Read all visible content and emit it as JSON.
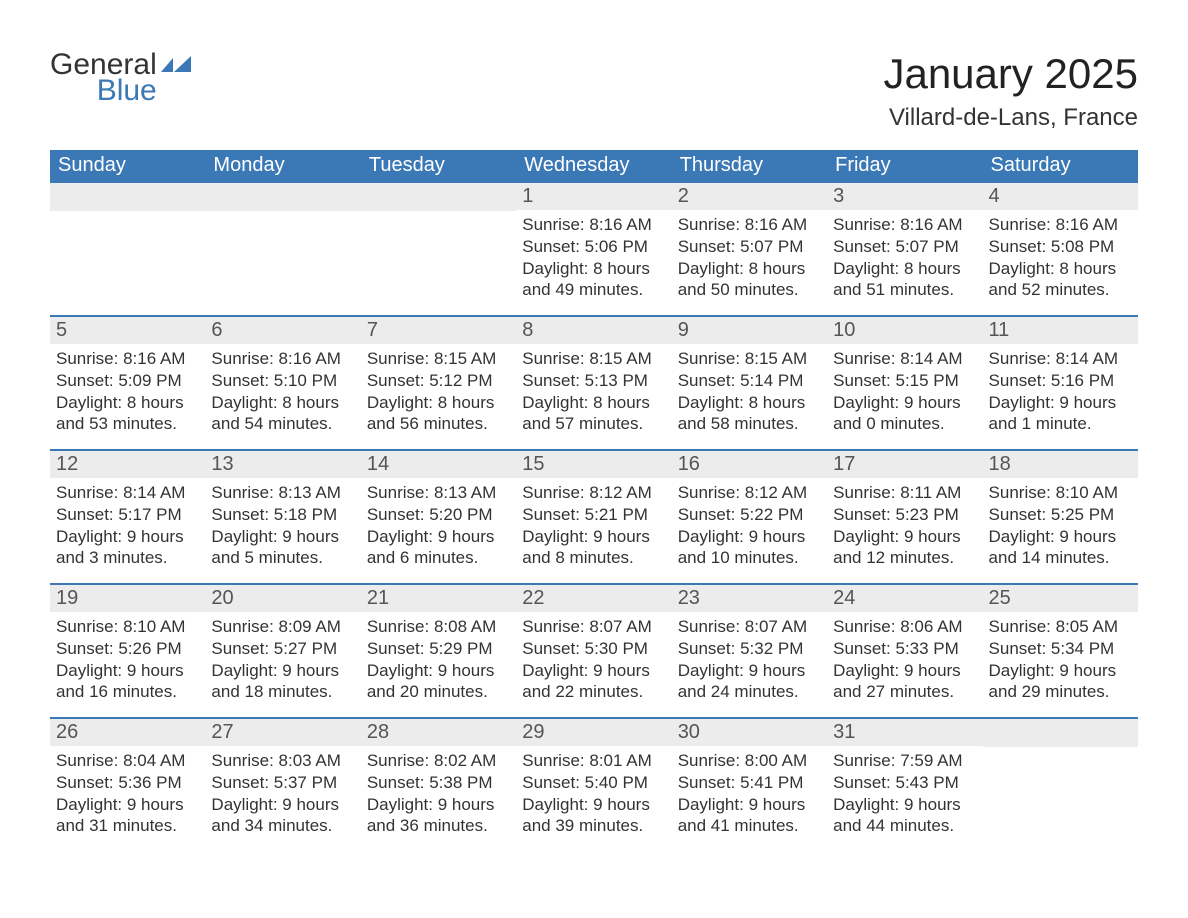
{
  "logo": {
    "word1": "General",
    "word2": "Blue",
    "flag_color": "#3a78b6"
  },
  "title": "January 2025",
  "location": "Villard-de-Lans, France",
  "colors": {
    "header_bg": "#3a78b6",
    "header_text": "#ffffff",
    "daybar_bg": "#ececec",
    "daybar_border": "#3a78b6",
    "text": "#333333"
  },
  "day_headers": [
    "Sunday",
    "Monday",
    "Tuesday",
    "Wednesday",
    "Thursday",
    "Friday",
    "Saturday"
  ],
  "first_weekday_index": 3,
  "days": [
    {
      "n": 1,
      "sunrise": "8:16 AM",
      "sunset": "5:06 PM",
      "daylight": "8 hours and 49 minutes."
    },
    {
      "n": 2,
      "sunrise": "8:16 AM",
      "sunset": "5:07 PM",
      "daylight": "8 hours and 50 minutes."
    },
    {
      "n": 3,
      "sunrise": "8:16 AM",
      "sunset": "5:07 PM",
      "daylight": "8 hours and 51 minutes."
    },
    {
      "n": 4,
      "sunrise": "8:16 AM",
      "sunset": "5:08 PM",
      "daylight": "8 hours and 52 minutes."
    },
    {
      "n": 5,
      "sunrise": "8:16 AM",
      "sunset": "5:09 PM",
      "daylight": "8 hours and 53 minutes."
    },
    {
      "n": 6,
      "sunrise": "8:16 AM",
      "sunset": "5:10 PM",
      "daylight": "8 hours and 54 minutes."
    },
    {
      "n": 7,
      "sunrise": "8:15 AM",
      "sunset": "5:12 PM",
      "daylight": "8 hours and 56 minutes."
    },
    {
      "n": 8,
      "sunrise": "8:15 AM",
      "sunset": "5:13 PM",
      "daylight": "8 hours and 57 minutes."
    },
    {
      "n": 9,
      "sunrise": "8:15 AM",
      "sunset": "5:14 PM",
      "daylight": "8 hours and 58 minutes."
    },
    {
      "n": 10,
      "sunrise": "8:14 AM",
      "sunset": "5:15 PM",
      "daylight": "9 hours and 0 minutes."
    },
    {
      "n": 11,
      "sunrise": "8:14 AM",
      "sunset": "5:16 PM",
      "daylight": "9 hours and 1 minute."
    },
    {
      "n": 12,
      "sunrise": "8:14 AM",
      "sunset": "5:17 PM",
      "daylight": "9 hours and 3 minutes."
    },
    {
      "n": 13,
      "sunrise": "8:13 AM",
      "sunset": "5:18 PM",
      "daylight": "9 hours and 5 minutes."
    },
    {
      "n": 14,
      "sunrise": "8:13 AM",
      "sunset": "5:20 PM",
      "daylight": "9 hours and 6 minutes."
    },
    {
      "n": 15,
      "sunrise": "8:12 AM",
      "sunset": "5:21 PM",
      "daylight": "9 hours and 8 minutes."
    },
    {
      "n": 16,
      "sunrise": "8:12 AM",
      "sunset": "5:22 PM",
      "daylight": "9 hours and 10 minutes."
    },
    {
      "n": 17,
      "sunrise": "8:11 AM",
      "sunset": "5:23 PM",
      "daylight": "9 hours and 12 minutes."
    },
    {
      "n": 18,
      "sunrise": "8:10 AM",
      "sunset": "5:25 PM",
      "daylight": "9 hours and 14 minutes."
    },
    {
      "n": 19,
      "sunrise": "8:10 AM",
      "sunset": "5:26 PM",
      "daylight": "9 hours and 16 minutes."
    },
    {
      "n": 20,
      "sunrise": "8:09 AM",
      "sunset": "5:27 PM",
      "daylight": "9 hours and 18 minutes."
    },
    {
      "n": 21,
      "sunrise": "8:08 AM",
      "sunset": "5:29 PM",
      "daylight": "9 hours and 20 minutes."
    },
    {
      "n": 22,
      "sunrise": "8:07 AM",
      "sunset": "5:30 PM",
      "daylight": "9 hours and 22 minutes."
    },
    {
      "n": 23,
      "sunrise": "8:07 AM",
      "sunset": "5:32 PM",
      "daylight": "9 hours and 24 minutes."
    },
    {
      "n": 24,
      "sunrise": "8:06 AM",
      "sunset": "5:33 PM",
      "daylight": "9 hours and 27 minutes."
    },
    {
      "n": 25,
      "sunrise": "8:05 AM",
      "sunset": "5:34 PM",
      "daylight": "9 hours and 29 minutes."
    },
    {
      "n": 26,
      "sunrise": "8:04 AM",
      "sunset": "5:36 PM",
      "daylight": "9 hours and 31 minutes."
    },
    {
      "n": 27,
      "sunrise": "8:03 AM",
      "sunset": "5:37 PM",
      "daylight": "9 hours and 34 minutes."
    },
    {
      "n": 28,
      "sunrise": "8:02 AM",
      "sunset": "5:38 PM",
      "daylight": "9 hours and 36 minutes."
    },
    {
      "n": 29,
      "sunrise": "8:01 AM",
      "sunset": "5:40 PM",
      "daylight": "9 hours and 39 minutes."
    },
    {
      "n": 30,
      "sunrise": "8:00 AM",
      "sunset": "5:41 PM",
      "daylight": "9 hours and 41 minutes."
    },
    {
      "n": 31,
      "sunrise": "7:59 AM",
      "sunset": "5:43 PM",
      "daylight": "9 hours and 44 minutes."
    }
  ],
  "labels": {
    "sunrise_prefix": "Sunrise: ",
    "sunset_prefix": "Sunset: ",
    "daylight_prefix": "Daylight: "
  }
}
